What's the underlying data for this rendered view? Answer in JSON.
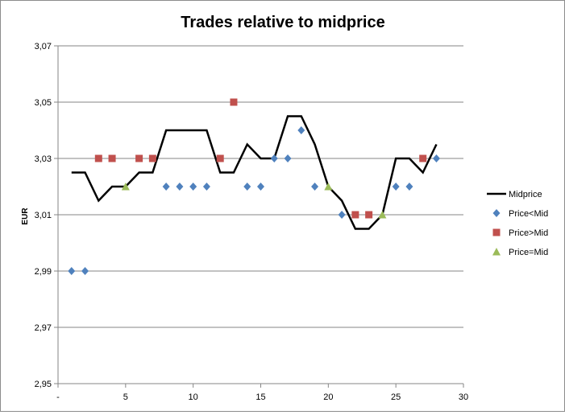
{
  "chart_data": {
    "type": "line",
    "title": "Trades relative to midprice",
    "xlabel": "",
    "ylabel": "EUR",
    "xlim": [
      0,
      30
    ],
    "ylim": [
      2.95,
      3.07
    ],
    "x_ticks": [
      0,
      5,
      10,
      15,
      20,
      25,
      30
    ],
    "x_tick_labels": [
      "-",
      "5",
      "10",
      "15",
      "20",
      "25",
      "30"
    ],
    "y_ticks": [
      2.95,
      2.97,
      2.99,
      3.01,
      3.03,
      3.05,
      3.07
    ],
    "y_tick_labels": [
      "2,95",
      "2,97",
      "2,99",
      "3,01",
      "3,03",
      "3,05",
      "3,07"
    ],
    "grid": "horizontal",
    "legend_position": "right",
    "series": [
      {
        "name": "Midprice",
        "kind": "line",
        "color": "#000000",
        "x": [
          1,
          2,
          3,
          4,
          5,
          6,
          7,
          8,
          9,
          10,
          11,
          12,
          13,
          14,
          15,
          16,
          17,
          18,
          19,
          20,
          21,
          22,
          23,
          24,
          25,
          26,
          27,
          28
        ],
        "y": [
          3.025,
          3.025,
          3.015,
          3.02,
          3.02,
          3.025,
          3.025,
          3.04,
          3.04,
          3.04,
          3.04,
          3.025,
          3.025,
          3.035,
          3.03,
          3.03,
          3.045,
          3.045,
          3.035,
          3.02,
          3.015,
          3.005,
          3.005,
          3.01,
          3.03,
          3.03,
          3.025,
          3.035
        ]
      },
      {
        "name": "Price<Mid",
        "kind": "diamond",
        "color": "#4f81bd",
        "x": [
          1,
          2,
          8,
          9,
          10,
          11,
          14,
          15,
          16,
          17,
          18,
          19,
          21,
          25,
          26,
          28
        ],
        "y": [
          2.99,
          2.99,
          3.02,
          3.02,
          3.02,
          3.02,
          3.02,
          3.02,
          3.03,
          3.03,
          3.04,
          3.02,
          3.01,
          3.02,
          3.02,
          3.03
        ]
      },
      {
        "name": "Price>Mid",
        "kind": "square",
        "color": "#c0504d",
        "x": [
          3,
          4,
          6,
          7,
          12,
          13,
          22,
          23,
          27
        ],
        "y": [
          3.03,
          3.03,
          3.03,
          3.03,
          3.03,
          3.05,
          3.01,
          3.01,
          3.03
        ]
      },
      {
        "name": "Price=Mid",
        "kind": "triangle",
        "color": "#9bbb59",
        "x": [
          5,
          20,
          24
        ],
        "y": [
          3.02,
          3.02,
          3.01
        ]
      }
    ]
  }
}
